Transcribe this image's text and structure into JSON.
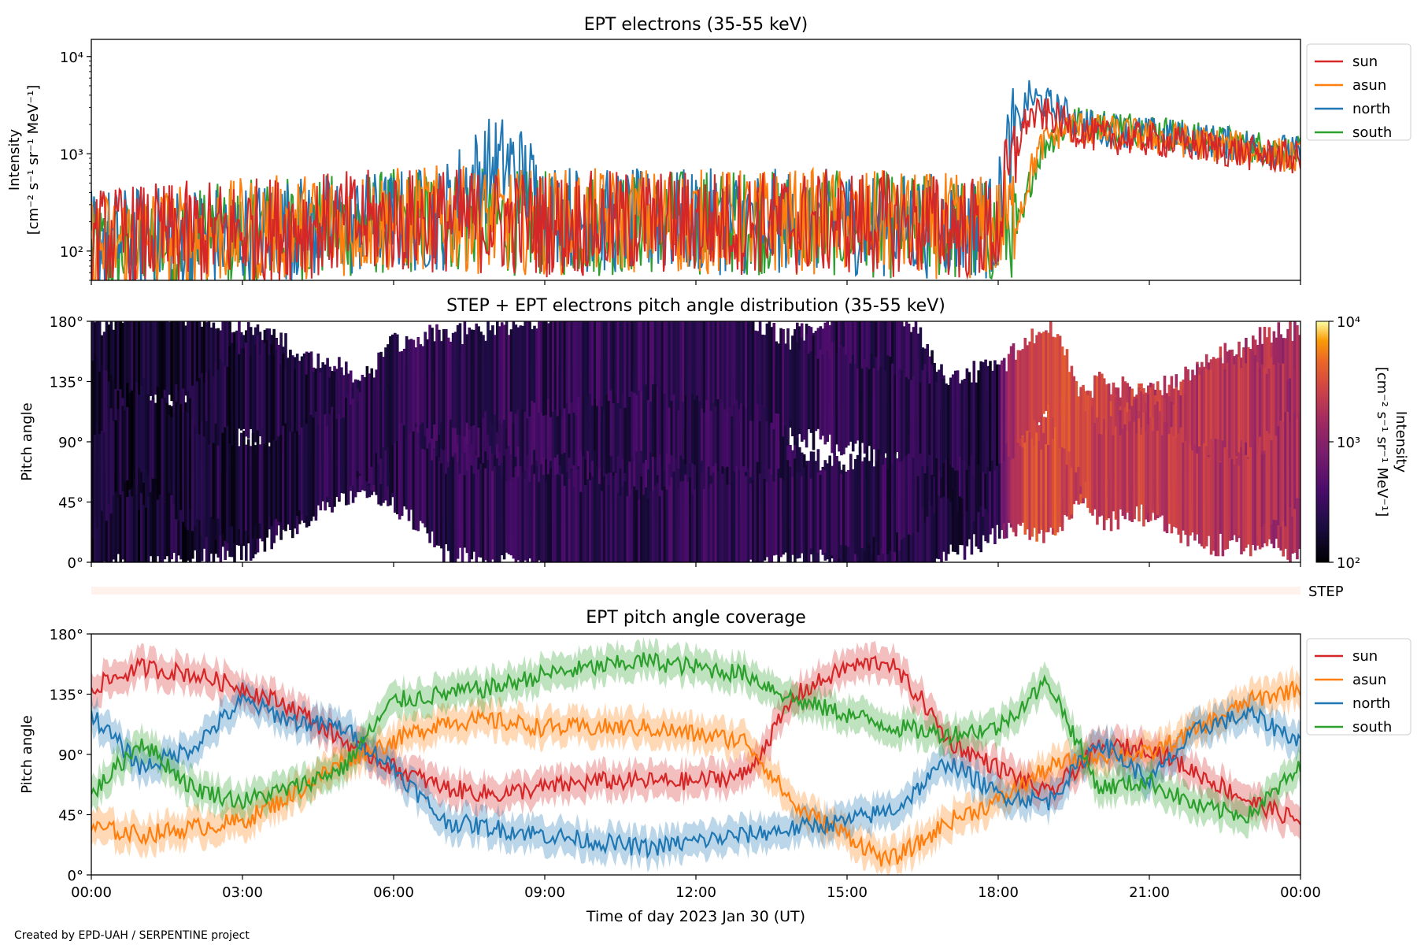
{
  "footer_text": "Created by EPD-UAH / SERPENTINE project",
  "colors": {
    "sun": "#d62728",
    "asun": "#ff7f0e",
    "north": "#1f77b4",
    "south": "#2ca02c",
    "step_strip": "#fff1ec"
  },
  "chart_data": [
    {
      "type": "line",
      "title": "EPT electrons (35-55 keV)",
      "ylabel_lines": [
        "Intensity",
        "[cm⁻² s⁻¹ sr⁻¹ MeV⁻¹]"
      ],
      "yscale": "log",
      "ylim": [
        50,
        15000
      ],
      "ytick_labels": [
        "10²",
        "10³",
        "10⁴"
      ],
      "ytick_values": [
        100,
        1000,
        10000
      ],
      "xlim_hours": [
        0,
        24
      ],
      "legend": [
        "sun",
        "asun",
        "north",
        "south"
      ],
      "legend_position": "outside-right-top",
      "series": [
        {
          "name": "sun",
          "color": "#d62728",
          "x_hours": [
            0,
            1,
            2,
            3,
            4,
            5,
            6,
            7,
            8,
            9,
            10,
            11,
            12,
            13,
            14,
            15,
            16,
            17,
            18,
            18.3,
            18.6,
            19,
            19.5,
            20,
            21,
            22,
            23,
            24
          ],
          "values": [
            130,
            140,
            150,
            160,
            180,
            190,
            200,
            210,
            200,
            190,
            190,
            200,
            200,
            200,
            190,
            200,
            190,
            180,
            160,
            700,
            2400,
            2500,
            1800,
            1500,
            1400,
            1200,
            1000,
            900
          ]
        },
        {
          "name": "asun",
          "color": "#ff7f0e",
          "x_hours": [
            0,
            1,
            2,
            3,
            4,
            5,
            6,
            7,
            8,
            9,
            10,
            11,
            12,
            13,
            14,
            15,
            16,
            17,
            18,
            18.5,
            19,
            19.5,
            20,
            21,
            22,
            23,
            24
          ],
          "values": [
            110,
            130,
            140,
            160,
            180,
            190,
            210,
            220,
            200,
            200,
            200,
            210,
            200,
            200,
            200,
            200,
            190,
            180,
            170,
            300,
            1500,
            1900,
            1700,
            1500,
            1300,
            1100,
            900
          ]
        },
        {
          "name": "north",
          "color": "#1f77b4",
          "x_hours": [
            0,
            1,
            2,
            3,
            4,
            5,
            6,
            7,
            7.9,
            8.3,
            9,
            10,
            11,
            12,
            13,
            14,
            15,
            16,
            17,
            18,
            18.4,
            18.6,
            19,
            19.5,
            20,
            21,
            22,
            23,
            24
          ],
          "values": [
            130,
            130,
            140,
            150,
            170,
            180,
            200,
            220,
            700,
            750,
            260,
            200,
            200,
            200,
            200,
            200,
            200,
            190,
            180,
            180,
            1800,
            3800,
            3200,
            2200,
            1800,
            1600,
            1400,
            1200,
            1000
          ]
        },
        {
          "name": "south",
          "color": "#2ca02c",
          "x_hours": [
            0,
            1,
            2,
            3,
            4,
            5,
            6,
            7,
            8,
            9,
            10,
            11,
            12,
            13,
            14,
            15,
            16,
            17,
            18,
            18.5,
            19,
            19.5,
            20,
            21,
            22,
            23,
            24
          ],
          "values": [
            90,
            110,
            130,
            150,
            170,
            180,
            200,
            210,
            200,
            190,
            190,
            200,
            200,
            200,
            190,
            190,
            180,
            170,
            150,
            200,
            1400,
            2100,
            2000,
            1800,
            1400,
            1200,
            1000
          ]
        }
      ]
    },
    {
      "type": "heatmap",
      "title": "STEP + EPT electrons pitch angle distribution (35-55 keV)",
      "ylabel": "Pitch angle",
      "ylim": [
        0,
        180
      ],
      "ytick_labels": [
        "0°",
        "45°",
        "90°",
        "135°",
        "180°"
      ],
      "ytick_values": [
        0,
        45,
        90,
        135,
        180
      ],
      "xlim_hours": [
        0,
        24
      ],
      "colorbar_label_lines": [
        "Intensity",
        "[cm⁻² s⁻¹ sr⁻¹ MeV⁻¹]"
      ],
      "colorbar_scale": "log",
      "colorbar_range": [
        100,
        10000
      ],
      "colorbar_tick_labels": [
        "10²",
        "10³",
        "10⁴"
      ],
      "colormap": "inferno",
      "intensity_profile_hours": [
        0,
        2,
        4,
        6,
        8,
        10,
        12,
        14,
        16,
        18,
        18.5,
        19,
        20,
        22,
        24
      ],
      "intensity_profile_values": [
        150,
        160,
        190,
        220,
        230,
        220,
        220,
        220,
        210,
        190,
        1800,
        2000,
        1600,
        1300,
        1000
      ],
      "step_label": "STEP"
    },
    {
      "type": "line",
      "title": "EPT pitch angle coverage",
      "ylabel": "Pitch angle",
      "xlabel": "Time of day 2023 Jan 30 (UT)",
      "ylim": [
        0,
        180
      ],
      "ytick_labels": [
        "0°",
        "45°",
        "90°",
        "135°",
        "180°"
      ],
      "ytick_values": [
        0,
        45,
        90,
        135,
        180
      ],
      "xlim_hours": [
        0,
        24
      ],
      "xtick_labels": [
        "00:00",
        "03:00",
        "06:00",
        "09:00",
        "12:00",
        "15:00",
        "18:00",
        "21:00",
        "00:00"
      ],
      "xtick_values": [
        0,
        3,
        6,
        9,
        12,
        15,
        18,
        21,
        24
      ],
      "legend": [
        "sun",
        "asun",
        "north",
        "south"
      ],
      "legend_position": "outside-right-top",
      "band_halfwidth_deg": 12,
      "series": [
        {
          "name": "sun",
          "color": "#d62728",
          "x_hours": [
            0,
            1,
            2,
            3,
            4,
            5,
            6,
            7,
            8,
            9,
            10,
            11,
            12,
            13,
            14,
            15,
            15.8,
            16.5,
            17,
            18,
            19,
            20,
            21,
            22,
            23,
            24
          ],
          "values": [
            140,
            155,
            150,
            140,
            125,
            100,
            80,
            65,
            60,
            65,
            70,
            70,
            70,
            75,
            135,
            155,
            160,
            130,
            100,
            80,
            60,
            95,
            95,
            75,
            55,
            40
          ]
        },
        {
          "name": "asun",
          "color": "#ff7f0e",
          "x_hours": [
            0,
            1,
            2,
            3,
            4,
            5,
            6,
            7,
            8,
            9,
            10,
            11,
            12,
            13,
            14,
            15,
            15.8,
            16.5,
            17,
            18,
            19,
            20,
            21,
            22,
            23,
            24
          ],
          "values": [
            35,
            30,
            35,
            40,
            60,
            85,
            100,
            115,
            115,
            110,
            110,
            110,
            105,
            100,
            50,
            30,
            10,
            25,
            40,
            55,
            80,
            90,
            90,
            110,
            130,
            140
          ]
        },
        {
          "name": "north",
          "color": "#1f77b4",
          "x_hours": [
            0,
            1,
            2,
            3,
            4,
            5,
            6,
            7,
            8,
            9,
            10,
            11,
            12,
            13,
            14,
            15,
            16,
            17,
            18,
            19,
            20,
            21,
            22,
            23,
            24
          ],
          "values": [
            120,
            80,
            95,
            130,
            115,
            110,
            80,
            40,
            35,
            30,
            25,
            20,
            25,
            30,
            35,
            40,
            50,
            85,
            60,
            55,
            100,
            70,
            110,
            120,
            100
          ]
        },
        {
          "name": "south",
          "color": "#2ca02c",
          "x_hours": [
            0,
            1,
            2,
            3,
            4,
            5,
            6,
            7,
            8,
            9,
            10,
            11,
            12,
            13,
            14,
            15,
            16,
            17,
            18,
            19,
            20,
            21,
            22,
            23,
            24
          ],
          "values": [
            60,
            100,
            65,
            55,
            65,
            80,
            130,
            135,
            140,
            150,
            155,
            160,
            155,
            150,
            130,
            120,
            110,
            105,
            110,
            145,
            65,
            70,
            50,
            45,
            80
          ]
        }
      ]
    }
  ]
}
